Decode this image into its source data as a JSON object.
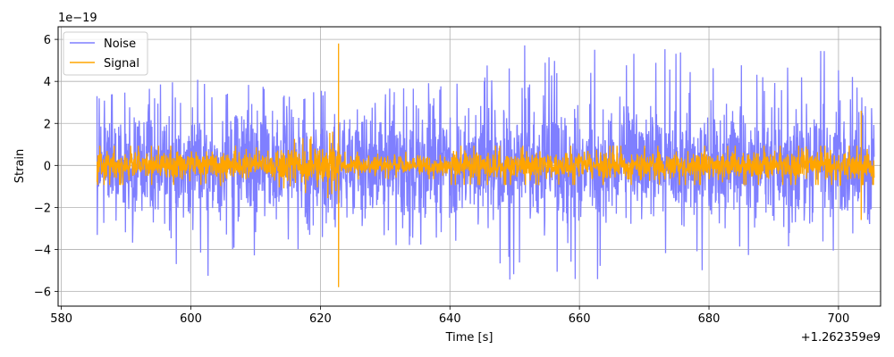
{
  "chart_data": {
    "type": "line",
    "title": "",
    "xlabel": "Time [s]",
    "ylabel": "Strain",
    "x_offset_label": "+1.262359e9",
    "y_offset_label": "1e−19",
    "xlim": [
      579.5,
      706.5
    ],
    "ylim": [
      -6.7,
      6.6
    ],
    "x_range": [
      585.5,
      705.5
    ],
    "x_ticks": [
      580,
      600,
      620,
      640,
      660,
      680,
      700
    ],
    "x_tick_labels": [
      "580",
      "600",
      "620",
      "640",
      "660",
      "680",
      "700"
    ],
    "y_ticks": [
      -6,
      -4,
      -2,
      0,
      2,
      4,
      6
    ],
    "y_tick_labels": [
      "−6",
      "−4",
      "−2",
      "0",
      "2",
      "4",
      "6"
    ],
    "grid": true,
    "legend_position": "top-left",
    "series": [
      {
        "name": "Noise",
        "color": "#7f7fff",
        "typical_amplitude": 1.8,
        "peak_envelope": {
          "x": [
            585.5,
            600,
            622,
            640,
            652,
            660,
            668,
            690,
            700,
            705.5
          ],
          "y": [
            3.3,
            4.2,
            3.5,
            4.0,
            5.9,
            5.5,
            5.9,
            4.5,
            6.0,
            2.5
          ]
        },
        "trough_envelope": {
          "x": [
            585.5,
            599,
            622,
            640,
            653,
            665,
            690,
            700,
            705.5
          ],
          "y": [
            -3.3,
            -5.6,
            -3.5,
            -4.2,
            -6.1,
            -6.0,
            -4.2,
            -4.8,
            -2.5
          ]
        }
      },
      {
        "name": "Signal",
        "color": "#ffa500",
        "typical_amplitude": 0.55,
        "spikes": [
          {
            "x": 622.8,
            "y_max": 5.8,
            "y_min": -5.8
          },
          {
            "x": 703.5,
            "y_max": 2.6,
            "y_min": -2.6
          }
        ]
      }
    ]
  }
}
